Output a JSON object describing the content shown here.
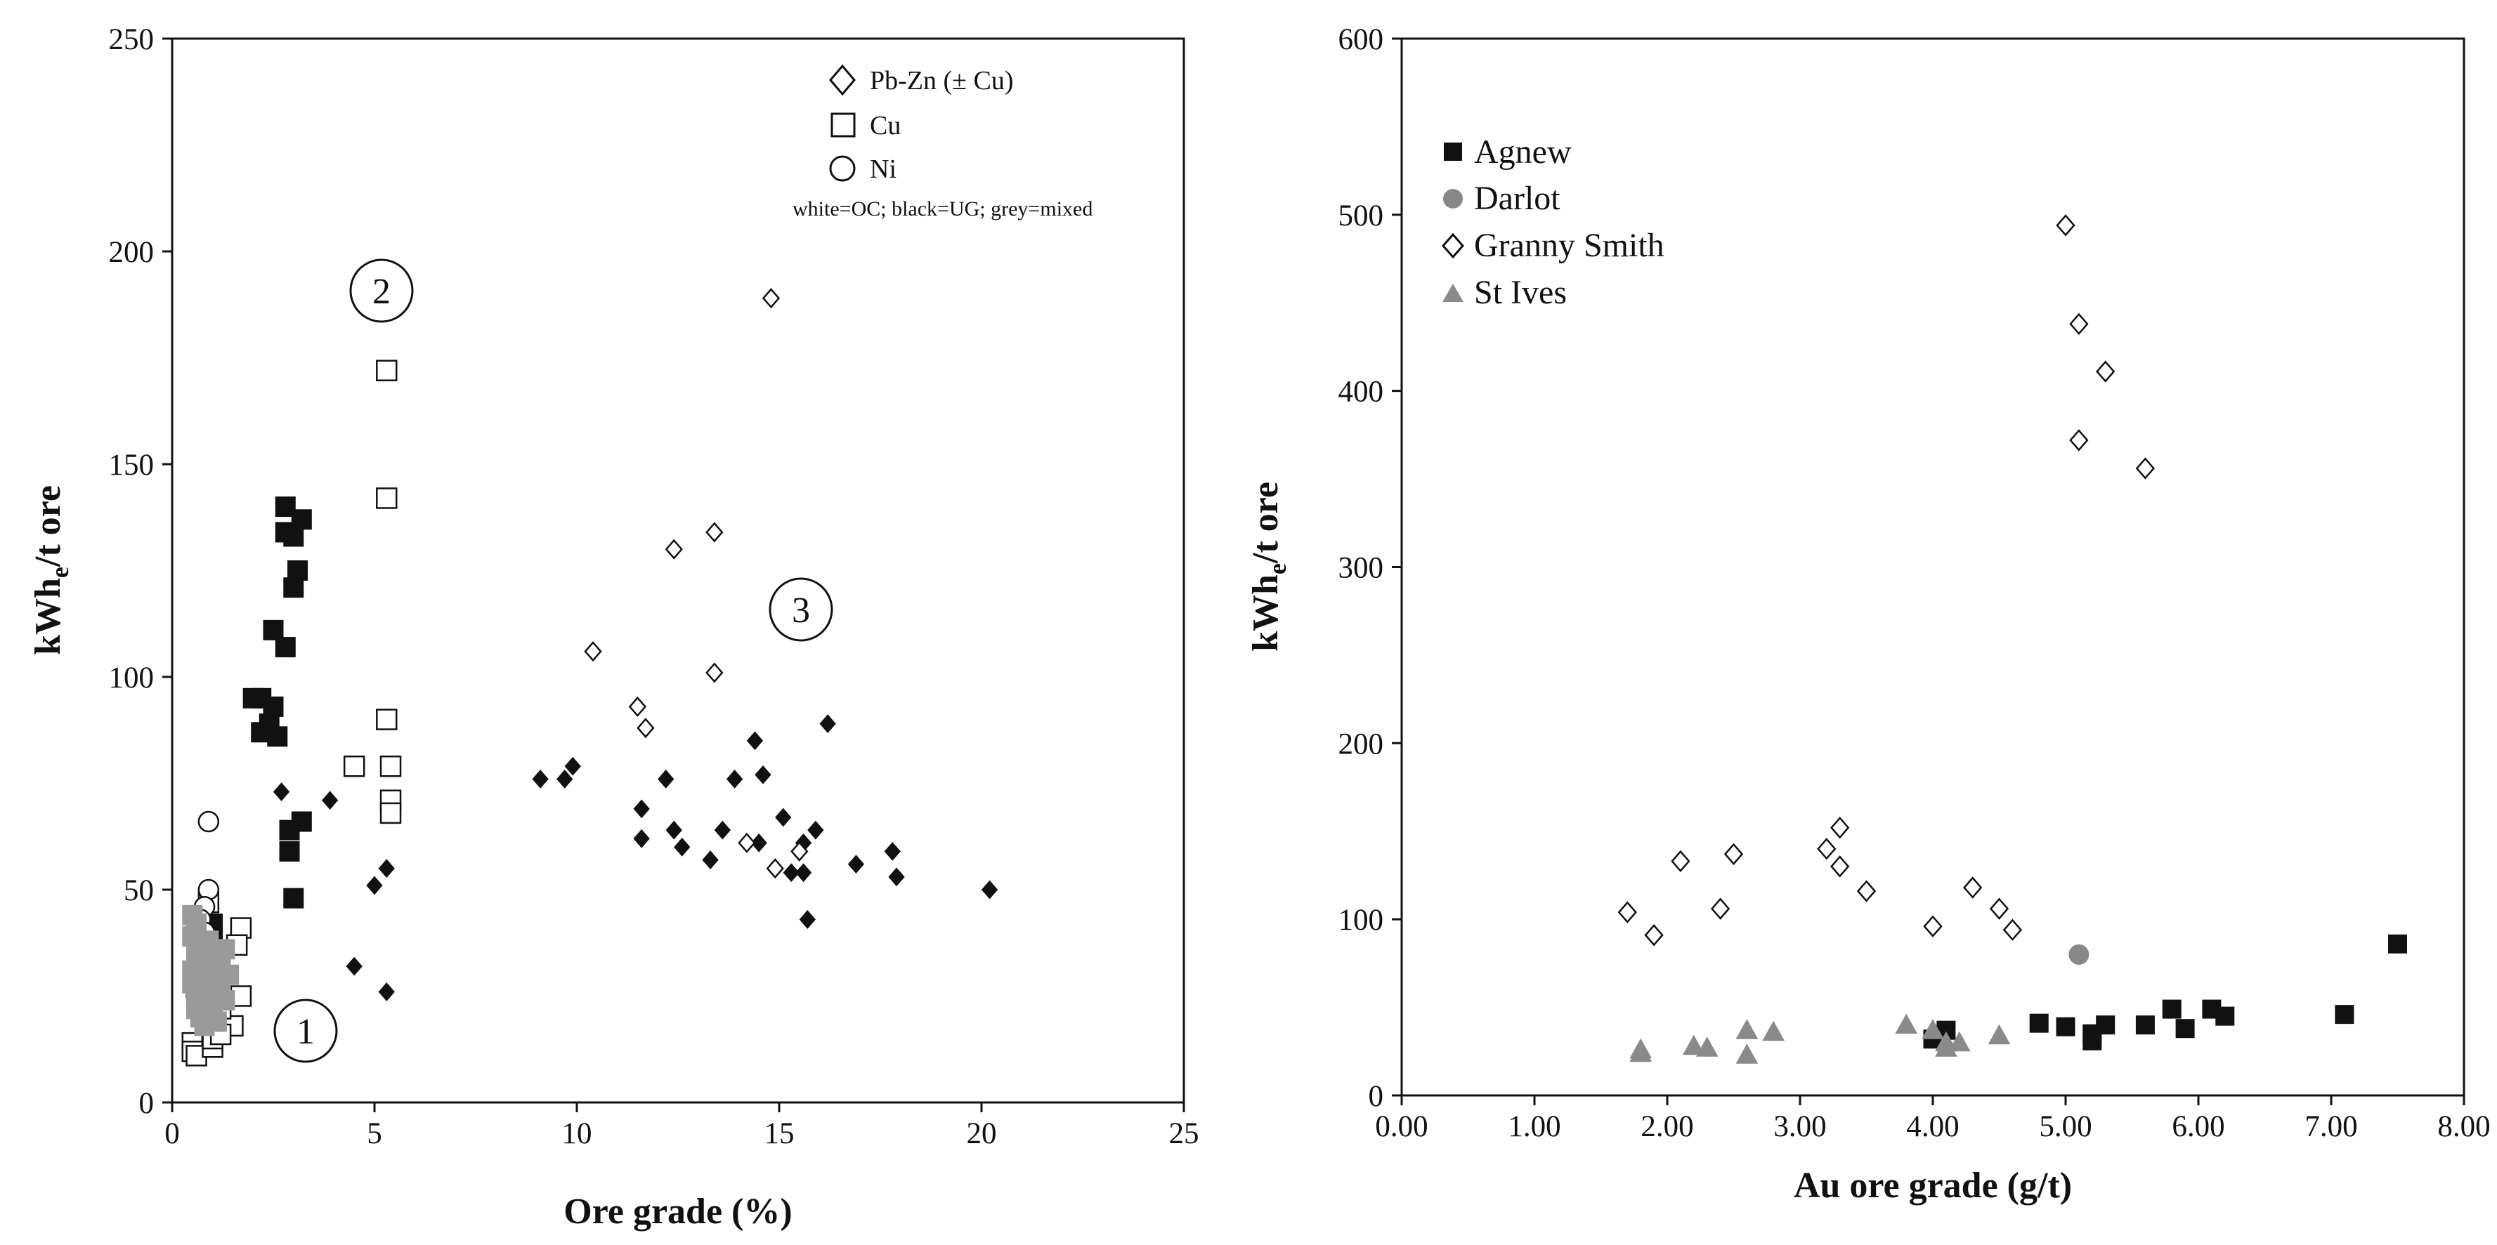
{
  "chart_data": [
    {
      "type": "scatter",
      "title": "",
      "xlabel": "Ore grade (%)",
      "ylabel": "kWh_e/t ore",
      "xlim": [
        0,
        25
      ],
      "ylim": [
        0,
        250
      ],
      "xticks": [
        "0",
        "5",
        "10",
        "15",
        "20",
        "25"
      ],
      "yticks": [
        "0",
        "50",
        "100",
        "150",
        "200",
        "250"
      ],
      "legend": {
        "position": "top-right",
        "items": [
          {
            "shape": "diamond",
            "label": "Pb-Zn (± Cu)"
          },
          {
            "shape": "square",
            "label": "Cu"
          },
          {
            "shape": "circle",
            "label": "Ni"
          }
        ],
        "note": "white=OC; black=UG; grey=mixed"
      },
      "annotations": [
        "1",
        "2",
        "3"
      ],
      "series": [
        {
          "name": "Pb-Zn UG (black)",
          "shape": "diamond",
          "fill": "#111111",
          "points": [
            [
              3.9,
              71
            ],
            [
              2.7,
              73
            ],
            [
              4.5,
              32
            ],
            [
              5.0,
              51
            ],
            [
              5.3,
              55
            ],
            [
              5.3,
              26
            ],
            [
              9.1,
              76
            ],
            [
              9.7,
              76
            ],
            [
              9.9,
              79
            ],
            [
              11.6,
              69
            ],
            [
              11.6,
              62
            ],
            [
              12.2,
              76
            ],
            [
              12.4,
              64
            ],
            [
              12.6,
              60
            ],
            [
              13.3,
              57
            ],
            [
              13.6,
              64
            ],
            [
              13.9,
              76
            ],
            [
              14.4,
              85
            ],
            [
              14.5,
              61
            ],
            [
              14.6,
              77
            ],
            [
              15.1,
              67
            ],
            [
              15.3,
              54
            ],
            [
              15.6,
              54
            ],
            [
              15.6,
              61
            ],
            [
              15.7,
              43
            ],
            [
              15.9,
              64
            ],
            [
              16.2,
              89
            ],
            [
              16.9,
              56
            ],
            [
              17.8,
              59
            ],
            [
              17.9,
              53
            ],
            [
              20.2,
              50
            ]
          ]
        },
        {
          "name": "Pb-Zn OC (white)",
          "shape": "diamond",
          "fill": "#ffffff",
          "points": [
            [
              14.8,
              189
            ],
            [
              12.4,
              130
            ],
            [
              13.4,
              134
            ],
            [
              10.4,
              106
            ],
            [
              13.4,
              101
            ],
            [
              11.5,
              93
            ],
            [
              11.7,
              88
            ],
            [
              14.2,
              61
            ],
            [
              14.9,
              55
            ],
            [
              15.5,
              59
            ]
          ]
        },
        {
          "name": "Cu UG (black)",
          "shape": "square",
          "fill": "#111111",
          "points": [
            [
              2.8,
              140
            ],
            [
              3.2,
              137
            ],
            [
              2.8,
              134
            ],
            [
              3.0,
              133
            ],
            [
              3.1,
              125
            ],
            [
              3.0,
              121
            ],
            [
              2.5,
              111
            ],
            [
              2.8,
              107
            ],
            [
              2.2,
              95
            ],
            [
              2.5,
              93
            ],
            [
              2.0,
              95
            ],
            [
              2.4,
              89
            ],
            [
              2.6,
              86
            ],
            [
              2.2,
              87
            ],
            [
              3.2,
              66
            ],
            [
              2.9,
              64
            ],
            [
              2.9,
              59
            ],
            [
              3.0,
              48
            ],
            [
              1.0,
              42
            ],
            [
              1.0,
              38
            ],
            [
              1.0,
              26
            ]
          ]
        },
        {
          "name": "Cu OC (white)",
          "shape": "square",
          "fill": "#ffffff",
          "points": [
            [
              5.3,
              172
            ],
            [
              5.3,
              142
            ],
            [
              5.3,
              90
            ],
            [
              5.4,
              79
            ],
            [
              5.4,
              71
            ],
            [
              5.4,
              68
            ],
            [
              4.5,
              79
            ],
            [
              1.7,
              41
            ],
            [
              1.6,
              37
            ],
            [
              1.7,
              25
            ],
            [
              1.5,
              18
            ],
            [
              1.2,
              22
            ],
            [
              0.9,
              47
            ],
            [
              0.5,
              14
            ],
            [
              0.5,
              12
            ],
            [
              0.6,
              11
            ],
            [
              1.0,
              13
            ],
            [
              1.0,
              15
            ],
            [
              1.2,
              16
            ]
          ]
        },
        {
          "name": "Ni OC (white)",
          "shape": "circle",
          "fill": "#ffffff",
          "points": [
            [
              0.9,
              66
            ],
            [
              0.9,
              50
            ],
            [
              0.8,
              46
            ],
            [
              0.7,
              43
            ],
            [
              0.8,
              40
            ],
            [
              0.9,
              35
            ],
            [
              1.0,
              30
            ],
            [
              0.6,
              25
            ]
          ]
        },
        {
          "name": "mixed (grey)",
          "shape": "square",
          "fill": "#9a9a9a",
          "points": [
            [
              0.5,
              44
            ],
            [
              0.6,
              42
            ],
            [
              0.5,
              39
            ],
            [
              0.7,
              37
            ],
            [
              0.6,
              35
            ],
            [
              0.8,
              33
            ],
            [
              0.5,
              31
            ],
            [
              0.7,
              29
            ],
            [
              0.9,
              27
            ],
            [
              0.6,
              25
            ],
            [
              0.8,
              23
            ],
            [
              1.0,
              21
            ],
            [
              0.7,
              20
            ],
            [
              1.1,
              19
            ],
            [
              1.3,
              24
            ],
            [
              1.2,
              28
            ],
            [
              1.4,
              30
            ],
            [
              0.9,
              38
            ],
            [
              1.1,
              34
            ],
            [
              1.3,
              36
            ],
            [
              0.6,
              22
            ],
            [
              0.5,
              28
            ],
            [
              0.8,
              18
            ],
            [
              1.0,
              25
            ],
            [
              1.2,
              32
            ]
          ]
        }
      ]
    },
    {
      "type": "scatter",
      "title": "",
      "xlabel": "Au ore grade (g/t)",
      "ylabel": "kWh_e/t ore",
      "xlim": [
        0,
        8
      ],
      "ylim": [
        0,
        600
      ],
      "xticks": [
        "0.00",
        "1.00",
        "2.00",
        "3.00",
        "4.00",
        "5.00",
        "6.00",
        "7.00",
        "8.00"
      ],
      "yticks": [
        "0",
        "100",
        "200",
        "300",
        "400",
        "500",
        "600"
      ],
      "legend": {
        "position": "top-left"
      },
      "series": [
        {
          "name": "Agnew",
          "shape": "square",
          "fill": "#111111",
          "points": [
            [
              4.0,
              32
            ],
            [
              4.1,
              37
            ],
            [
              4.8,
              41
            ],
            [
              5.0,
              39
            ],
            [
              5.2,
              35
            ],
            [
              5.3,
              40
            ],
            [
              5.2,
              31
            ],
            [
              5.6,
              40
            ],
            [
              5.8,
              49
            ],
            [
              5.9,
              38
            ],
            [
              6.1,
              49
            ],
            [
              6.2,
              45
            ],
            [
              7.1,
              46
            ],
            [
              7.5,
              86
            ]
          ]
        },
        {
          "name": "Darlot",
          "shape": "circle",
          "fill": "#888888",
          "points": [
            [
              5.1,
              80
            ]
          ]
        },
        {
          "name": "Granny Smith",
          "shape": "diamond",
          "fill": "#ffffff",
          "points": [
            [
              1.7,
              104
            ],
            [
              1.9,
              91
            ],
            [
              2.1,
              133
            ],
            [
              2.4,
              106
            ],
            [
              2.5,
              137
            ],
            [
              3.2,
              140
            ],
            [
              3.3,
              152
            ],
            [
              3.3,
              130
            ],
            [
              3.5,
              116
            ],
            [
              4.0,
              96
            ],
            [
              4.3,
              118
            ],
            [
              4.5,
              106
            ],
            [
              4.6,
              94
            ],
            [
              5.0,
              494
            ],
            [
              5.1,
              438
            ],
            [
              5.1,
              372
            ],
            [
              5.3,
              411
            ],
            [
              5.6,
              356
            ]
          ]
        },
        {
          "name": "St Ives",
          "shape": "triangle",
          "fill": "#8a8a8a",
          "points": [
            [
              1.8,
              26
            ],
            [
              1.8,
              24
            ],
            [
              2.2,
              28
            ],
            [
              2.3,
              27
            ],
            [
              2.6,
              37
            ],
            [
              2.6,
              23
            ],
            [
              2.8,
              36
            ],
            [
              3.8,
              40
            ],
            [
              4.0,
              37
            ],
            [
              4.1,
              27
            ],
            [
              4.1,
              30
            ],
            [
              4.2,
              30
            ],
            [
              4.5,
              34
            ]
          ]
        }
      ]
    }
  ]
}
